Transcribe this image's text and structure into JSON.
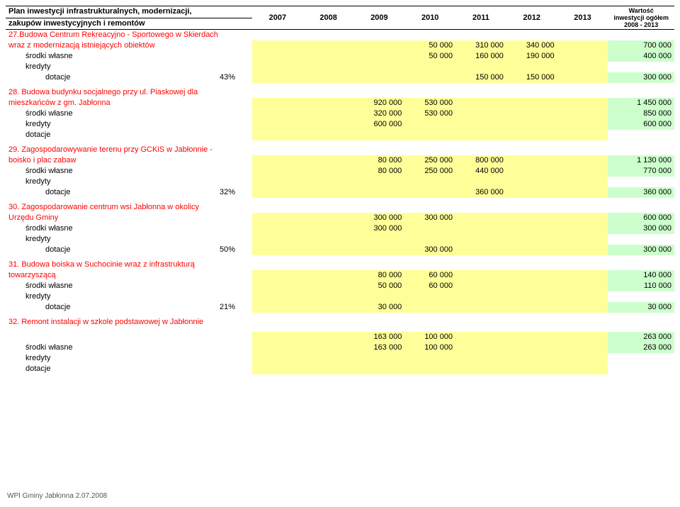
{
  "header": {
    "title_l1": "Plan inwestycji infrastrukturalnych, modernizacji,",
    "title_l2": "zakupów inwestycyjnych i remontów",
    "years": [
      "2007",
      "2008",
      "2009",
      "2010",
      "2011",
      "2012",
      "2013"
    ],
    "total_l1": "Wartość",
    "total_l2": "inwestycji ogółem",
    "total_l3": "2008 - 2013"
  },
  "labels": {
    "srodki": "środki własne",
    "kredyty": "kredyty",
    "dotacje": "dotacje"
  },
  "items": [
    {
      "title_l1": "27.Budowa Centrum Rekreacyjno - Sportowego w Skierdach",
      "title_l2": "wraz z modernizacją istniejących obiektów",
      "main": [
        "",
        "",
        "",
        "50 000",
        "310 000",
        "340 000",
        "",
        "700 000"
      ],
      "srodki": [
        "",
        "",
        "",
        "50 000",
        "160 000",
        "190 000",
        "",
        "400 000"
      ],
      "kredyty": [
        "",
        "",
        "",
        "",
        "",
        "",
        "",
        ""
      ],
      "dotacje_pct": "43%",
      "dotacje": [
        "",
        "",
        "",
        "",
        "150 000",
        "150 000",
        "",
        "300 000"
      ]
    },
    {
      "title_l1": "28. Budowa budynku socjalnego przy ul. Piaskowej dla",
      "title_l2": "mieszkańców z gm. Jabłonna",
      "main": [
        "",
        "",
        "920 000",
        "530 000",
        "",
        "",
        "",
        "1 450 000"
      ],
      "srodki": [
        "",
        "",
        "320 000",
        "530 000",
        "",
        "",
        "",
        "850 000"
      ],
      "kredyty": [
        "",
        "",
        "600 000",
        "",
        "",
        "",
        "",
        "600 000"
      ],
      "dotacje_pct": "",
      "dotacje": [
        "",
        "",
        "",
        "",
        "",
        "",
        "",
        ""
      ]
    },
    {
      "title_l1": "29. Zagospodarowywanie terenu przy GCKiS w Jabłonnie -",
      "title_l2": "boisko i plac zabaw",
      "main": [
        "",
        "",
        "80 000",
        "250 000",
        "800 000",
        "",
        "",
        "1 130 000"
      ],
      "srodki": [
        "",
        "",
        "80 000",
        "250 000",
        "440 000",
        "",
        "",
        "770 000"
      ],
      "kredyty": [
        "",
        "",
        "",
        "",
        "",
        "",
        "",
        ""
      ],
      "dotacje_pct": "32%",
      "dotacje": [
        "",
        "",
        "",
        "",
        "360 000",
        "",
        "",
        "360 000"
      ]
    },
    {
      "title_l1": "30. Zagospodarowanie centrum wsi Jabłonna w okolicy",
      "title_l2": "Urzędu Gminy",
      "main": [
        "",
        "",
        "300 000",
        "300 000",
        "",
        "",
        "",
        "600 000"
      ],
      "srodki": [
        "",
        "",
        "300 000",
        "",
        "",
        "",
        "",
        "300 000"
      ],
      "kredyty": [
        "",
        "",
        "",
        "",
        "",
        "",
        "",
        ""
      ],
      "dotacje_pct": "50%",
      "dotacje": [
        "",
        "",
        "",
        "300 000",
        "",
        "",
        "",
        "300 000"
      ]
    },
    {
      "title_l1": "31. Budowa boiska w Suchocinie wraz z infrastrukturą",
      "title_l2": "towarzyszącą",
      "main": [
        "",
        "",
        "80 000",
        "60 000",
        "",
        "",
        "",
        "140 000"
      ],
      "srodki": [
        "",
        "",
        "50 000",
        "60 000",
        "",
        "",
        "",
        "110 000"
      ],
      "kredyty": [
        "",
        "",
        "",
        "",
        "",
        "",
        "",
        ""
      ],
      "dotacje_pct": "21%",
      "dotacje": [
        "",
        "",
        "30 000",
        "",
        "",
        "",
        "",
        "30 000"
      ]
    },
    {
      "title_l1": "32. Remont instalacji w szkole podstawowej w Jabłonnie",
      "title_l2": "",
      "main": [
        "",
        "",
        "163 000",
        "100 000",
        "",
        "",
        "",
        "263 000"
      ],
      "srodki": [
        "",
        "",
        "163 000",
        "100 000",
        "",
        "",
        "",
        "263 000"
      ],
      "kredyty": [
        "",
        "",
        "",
        "",
        "",
        "",
        "",
        ""
      ],
      "dotacje_pct": "",
      "dotacje": [
        "",
        "",
        "",
        "",
        "",
        "",
        "",
        ""
      ],
      "main_on_separate": true
    }
  ],
  "footer": "WPI Gminy Jabłonna 2.07.2008",
  "colors": {
    "yellow": "#ffff99",
    "green": "#ccffcc",
    "red": "#ff0000",
    "border": "#000000",
    "bg": "#ffffff"
  }
}
